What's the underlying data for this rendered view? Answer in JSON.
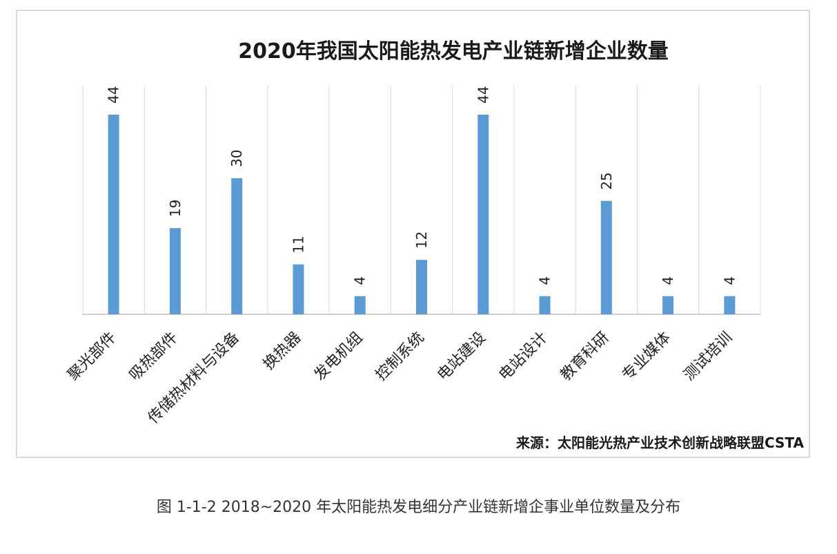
{
  "chart_data": {
    "type": "bar",
    "title": "2020年我国太阳能热发电产业链新增企业数量",
    "categories": [
      "聚光部件",
      "吸热部件",
      "传储热材料与设备",
      "换热器",
      "发电机组",
      "控制系统",
      "电站建设",
      "电站设计",
      "教育科研",
      "专业媒体",
      "测试培训"
    ],
    "values": [
      44,
      19,
      30,
      11,
      4,
      12,
      44,
      4,
      25,
      4,
      4
    ],
    "data_labels": [
      "44",
      "19",
      "30",
      "11",
      "4",
      "12",
      "44",
      "4",
      "25",
      "4",
      "4"
    ],
    "xlabel": "",
    "ylabel": "",
    "ylim": [
      0,
      44
    ],
    "bar_color": "#5b9bd5",
    "grid": "vertical",
    "source": "来源：太阳能光热产业技术创新战略联盟CSTA"
  },
  "caption": "图 1-1-2  2018~2020 年太阳能热发电细分产业链新增企事业单位数量及分布"
}
